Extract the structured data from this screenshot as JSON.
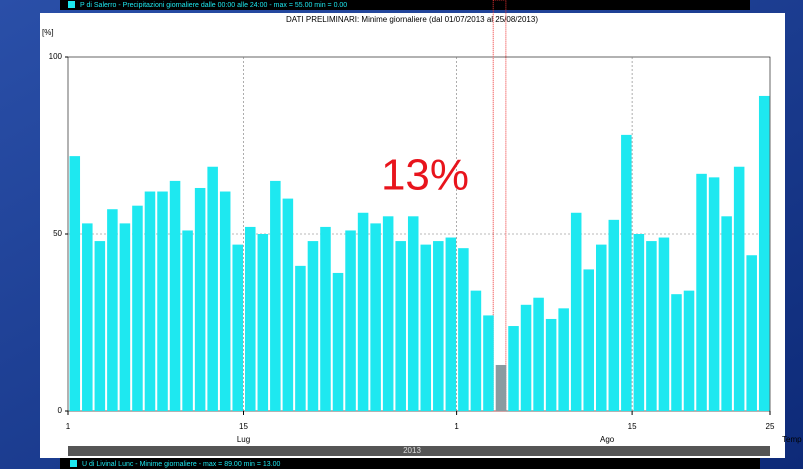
{
  "chart_data": {
    "type": "bar",
    "title": "DATI PRELIMINARI: Minime giornaliere (dal 01/07/2013 al 25/08/2013)",
    "top_legend": "P di Salerro - Precipitazioni giornaliere dalle 00:00 alle 24:00 - max = 55.00 min = 0.00",
    "bottom_legend": "U di Livinal Lunc - Minime giornaliere - max = 89.00 min = 13.00",
    "ylabel": "[%]",
    "xlabel": "Temp",
    "annotation": "13%",
    "months": [
      "Lug",
      "Ago"
    ],
    "year": "2013",
    "categories": [
      "1",
      null,
      null,
      null,
      null,
      null,
      null,
      null,
      null,
      null,
      null,
      null,
      null,
      null,
      "15",
      null,
      null,
      null,
      null,
      null,
      null,
      null,
      null,
      null,
      null,
      null,
      null,
      null,
      null,
      null,
      null,
      "1",
      null,
      null,
      null,
      null,
      null,
      null,
      null,
      null,
      null,
      null,
      null,
      null,
      null,
      "15",
      null,
      null,
      null,
      null,
      null,
      null,
      null,
      null,
      null,
      "25"
    ],
    "values": [
      72,
      53,
      48,
      57,
      53,
      58,
      62,
      62,
      65,
      51,
      63,
      69,
      62,
      47,
      52,
      50,
      65,
      60,
      41,
      48,
      52,
      39,
      51,
      56,
      53,
      55,
      48,
      55,
      47,
      48,
      49,
      46,
      34,
      27,
      13,
      24,
      30,
      32,
      26,
      29,
      56,
      40,
      47,
      54,
      78,
      50,
      48,
      49,
      33,
      34,
      67,
      66,
      55,
      69,
      44,
      89
    ],
    "color": "#1ee8f0",
    "highlight": 34,
    "highlight_color": "#8a9aa0",
    "ylim": [
      0,
      100
    ],
    "yticks": [
      0,
      50,
      100
    ],
    "grid": true
  }
}
